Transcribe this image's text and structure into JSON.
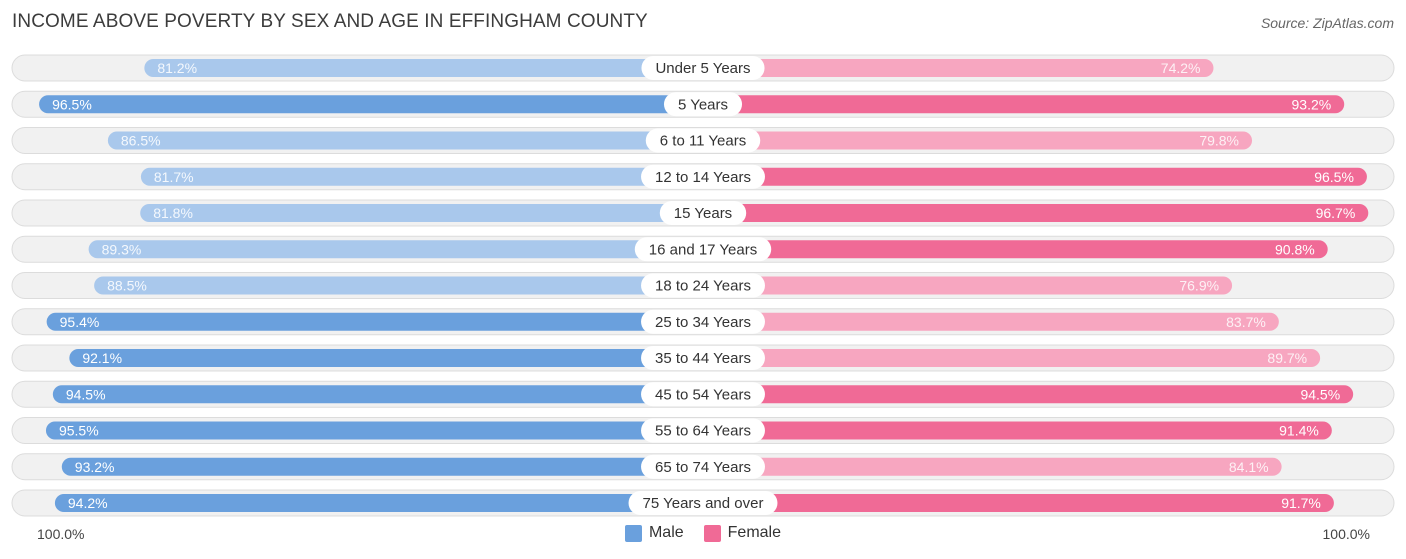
{
  "header": {
    "title": "INCOME ABOVE POVERTY BY SEX AND AGE IN EFFINGHAM COUNTY",
    "source": "Source: ZipAtlas.com"
  },
  "colors": {
    "male_strong": "#6aa0dd",
    "male_light": "#a9c8ec",
    "female_strong": "#f06a96",
    "female_light": "#f7a6c0"
  },
  "axis": {
    "left_label": "100.0%",
    "right_label": "100.0%"
  },
  "legend": {
    "male": "Male",
    "female": "Female"
  },
  "chart_data": {
    "type": "bar",
    "orientation": "horizontal-diverging",
    "title": "INCOME ABOVE POVERTY BY SEX AND AGE IN EFFINGHAM COUNTY",
    "xlim": [
      0,
      100
    ],
    "categories": [
      "Under 5 Years",
      "5 Years",
      "6 to 11 Years",
      "12 to 14 Years",
      "15 Years",
      "16 and 17 Years",
      "18 to 24 Years",
      "25 to 34 Years",
      "35 to 44 Years",
      "45 to 54 Years",
      "55 to 64 Years",
      "65 to 74 Years",
      "75 Years and over"
    ],
    "series": [
      {
        "name": "Male",
        "values": [
          81.2,
          96.5,
          86.5,
          81.7,
          81.8,
          89.3,
          88.5,
          95.4,
          92.1,
          94.5,
          95.5,
          93.2,
          94.2
        ],
        "labels": [
          "81.2%",
          "96.5%",
          "86.5%",
          "81.7%",
          "81.8%",
          "89.3%",
          "88.5%",
          "95.4%",
          "92.1%",
          "94.5%",
          "95.5%",
          "93.2%",
          "94.2%"
        ]
      },
      {
        "name": "Female",
        "values": [
          74.2,
          93.2,
          79.8,
          96.5,
          96.7,
          90.8,
          76.9,
          83.7,
          89.7,
          94.5,
          91.4,
          84.1,
          91.7
        ],
        "labels": [
          "74.2%",
          "93.2%",
          "79.8%",
          "96.5%",
          "96.7%",
          "90.8%",
          "76.9%",
          "83.7%",
          "89.7%",
          "94.5%",
          "91.4%",
          "84.1%",
          "91.7%"
        ]
      }
    ]
  }
}
